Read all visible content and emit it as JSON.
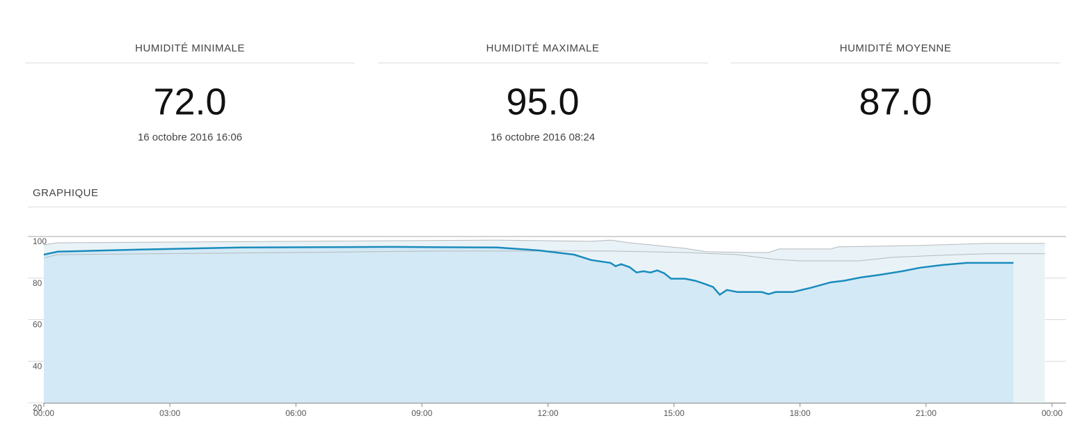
{
  "cards": [
    {
      "title": "HUMIDITÉ MINIMALE",
      "value": "72.0",
      "date": "16 octobre 2016 16:06"
    },
    {
      "title": "HUMIDITÉ MAXIMALE",
      "value": "95.0",
      "date": "16 octobre 2016 08:24"
    },
    {
      "title": "HUMIDITÉ MOYENNE",
      "value": "87.0"
    }
  ],
  "section_title": "GRAPHIQUE",
  "chart_data": {
    "type": "line",
    "xlim": [
      0,
      24
    ],
    "xticks": [
      {
        "value": 0,
        "label": "00:00"
      },
      {
        "value": 3,
        "label": "03:00"
      },
      {
        "value": 6,
        "label": "06:00"
      },
      {
        "value": 9,
        "label": "09:00"
      },
      {
        "value": 12,
        "label": "12:00"
      },
      {
        "value": 15,
        "label": "15:00"
      },
      {
        "value": 18,
        "label": "18:00"
      },
      {
        "value": 21,
        "label": "21:00"
      },
      {
        "value": 24,
        "label": "00:00"
      }
    ],
    "ylim": [
      20,
      100
    ],
    "yticks": [
      20,
      40,
      60,
      80,
      100
    ],
    "grid": true,
    "series": [
      {
        "color": "#b5b9bc",
        "x": [
          0,
          0.33,
          10.79,
          13.03,
          13.49,
          13.94,
          14.44,
          15.26,
          15.76,
          16.84,
          17.25,
          17.5,
          18.74,
          18.9,
          20.9,
          22.4,
          23.83
        ],
        "values": [
          96,
          97,
          98.3,
          97.7,
          98.3,
          97,
          96,
          94.3,
          92.7,
          92.3,
          92.3,
          94,
          94,
          95,
          95.7,
          96.7,
          96.7
        ]
      },
      {
        "color": "#b5b9bc",
        "x": [
          0,
          0.33,
          6.0,
          9.3,
          13.5,
          15.3,
          16.5,
          17.4,
          18.0,
          19.4,
          20.2,
          21.4,
          22.4,
          23.83
        ],
        "values": [
          89.7,
          91.3,
          92.3,
          93,
          93,
          92.3,
          91.3,
          89,
          88.3,
          88.3,
          90,
          91,
          91.7,
          91.7
        ]
      },
      {
        "color": "#1a8bbd",
        "x": [
          0,
          0.33,
          2.27,
          4.67,
          8.31,
          10.79,
          11.79,
          12.2,
          12.62,
          13.03,
          13.49,
          13.61,
          13.74,
          13.94,
          14.11,
          14.27,
          14.44,
          14.6,
          14.77,
          14.93,
          15.26,
          15.51,
          15.76,
          15.93,
          16.09,
          16.26,
          16.51,
          17.09,
          17.25,
          17.42,
          17.83,
          18.25,
          18.74,
          19.04,
          19.44,
          19.93,
          20.43,
          20.86,
          21.39,
          21.97,
          22.47,
          23.08
        ],
        "values": [
          91.3,
          92.7,
          93.7,
          94.7,
          95,
          94.7,
          93.3,
          92.3,
          91.3,
          88.7,
          87.3,
          85.7,
          86.7,
          85.3,
          82.7,
          83.3,
          82.7,
          83.7,
          82.3,
          79.7,
          79.7,
          78.7,
          77,
          75.7,
          72,
          74.3,
          73.3,
          73.3,
          72.3,
          73.3,
          73.3,
          75.3,
          78,
          78.7,
          80.3,
          81.7,
          83.3,
          85,
          86.3,
          87.3,
          87.3,
          87.3
        ]
      }
    ]
  }
}
